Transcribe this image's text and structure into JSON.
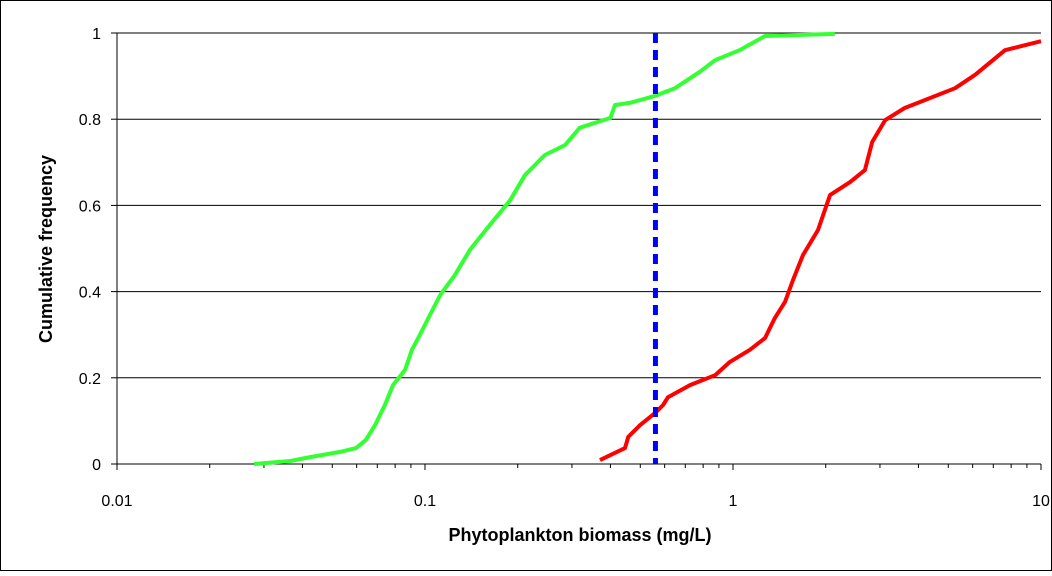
{
  "chart_data": {
    "type": "line",
    "x_label": "Phytoplankton biomass (mg/L)",
    "y_label": "Cumulative frequency",
    "xscale": "log",
    "xlim": [
      0.01,
      10
    ],
    "xticks": [
      0.01,
      0.1,
      1,
      10
    ],
    "ylim": [
      0,
      1
    ],
    "yticks": [
      0,
      0.2,
      0.4,
      0.6,
      0.8,
      1
    ],
    "grid": true,
    "reference_x": 0.56,
    "reference_color": "#0000ff",
    "series": [
      {
        "color": "#33ff33",
        "x": [
          0.0279,
          0.0365,
          0.0424,
          0.053,
          0.0597,
          0.0643,
          0.0688,
          0.0741,
          0.0787,
          0.0861,
          0.0907,
          0.0963,
          0.1038,
          0.112,
          0.125,
          0.14,
          0.1626,
          0.189,
          0.211,
          0.245,
          0.285,
          0.318,
          0.4,
          0.414,
          0.463,
          0.558,
          0.648,
          0.78,
          0.875,
          1.05,
          1.27,
          2.14
        ],
        "values": [
          0,
          0.007,
          0.016,
          0.028,
          0.037,
          0.056,
          0.09,
          0.137,
          0.183,
          0.218,
          0.265,
          0.3,
          0.346,
          0.392,
          0.438,
          0.497,
          0.555,
          0.612,
          0.67,
          0.717,
          0.74,
          0.78,
          0.803,
          0.833,
          0.838,
          0.854,
          0.872,
          0.91,
          0.937,
          0.96,
          0.993,
          0.998
        ]
      },
      {
        "color": "#ff0000",
        "x": [
          0.37,
          0.446,
          0.457,
          0.499,
          0.558,
          0.593,
          0.615,
          0.725,
          0.875,
          0.977,
          1.135,
          1.27,
          1.368,
          1.475,
          1.566,
          1.687,
          1.888,
          2.065,
          2.4,
          2.68,
          2.83,
          3.12,
          3.61,
          5.26,
          6.11,
          7.64,
          10
        ],
        "values": [
          0.009,
          0.037,
          0.063,
          0.09,
          0.118,
          0.137,
          0.155,
          0.183,
          0.206,
          0.237,
          0.265,
          0.292,
          0.339,
          0.376,
          0.427,
          0.485,
          0.543,
          0.624,
          0.654,
          0.682,
          0.747,
          0.798,
          0.826,
          0.872,
          0.903,
          0.96,
          0.981
        ]
      }
    ]
  }
}
